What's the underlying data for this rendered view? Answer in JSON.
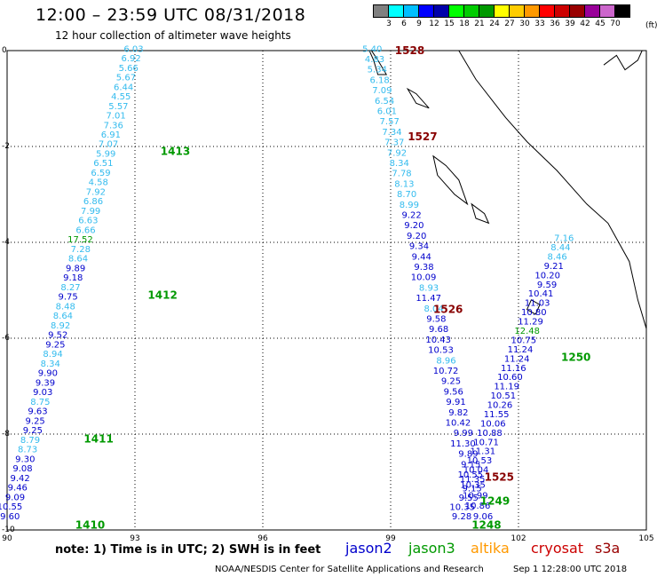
{
  "header": {
    "title": "12:00  –  23:59 UTC 08/31/2018",
    "subtitle": "12 hour collection of altimeter wave heights"
  },
  "legend": {
    "labels": [
      "3",
      "6",
      "9",
      "12",
      "15",
      "18",
      "21",
      "24",
      "27",
      "30",
      "33",
      "36",
      "39",
      "42",
      "45",
      "70"
    ],
    "colors": [
      "#808080",
      "#00ffff",
      "#00bfff",
      "#0000ff",
      "#0000aa",
      "#00ff00",
      "#00cc00",
      "#009900",
      "#ffff00",
      "#ffcc00",
      "#ff9900",
      "#ff0000",
      "#cc0000",
      "#990000",
      "#990099",
      "#cc66cc",
      "#000000"
    ],
    "unit": "(ft)"
  },
  "axes": {
    "x_ticks": [
      "90",
      "93",
      "96",
      "99",
      "102",
      "105"
    ],
    "y_ticks": [
      "0",
      "-2",
      "-4",
      "-6",
      "-8",
      "-10"
    ]
  },
  "colors": {
    "jason2": "#0000cc",
    "jason3": "#009900",
    "altika": "#ff9900",
    "cryosat": "#cc0000",
    "s3a": "#990000",
    "light_blue": "#33bbee",
    "pass_label": "#009900",
    "pass_label_dark": "#880000"
  },
  "tracks": [
    {
      "id": "track-left",
      "pass_labels": [
        {
          "text": "1413",
          "pos": [
            93.6,
            -2.1
          ],
          "color": "#009900"
        },
        {
          "text": "1412",
          "pos": [
            93.3,
            -5.1
          ],
          "color": "#009900"
        },
        {
          "text": "1411",
          "pos": [
            91.8,
            -8.1
          ],
          "color": "#009900"
        },
        {
          "text": "1410",
          "pos": [
            91.6,
            -9.9
          ],
          "color": "#009900"
        }
      ],
      "start": [
        93.2,
        0.05
      ],
      "end": [
        90.3,
        -9.7
      ],
      "values": [
        "6.03",
        "6.92",
        "5.66",
        "5.67",
        "6.44",
        "4.55",
        "5.57",
        "7.01",
        "7.36",
        "6.91",
        "7.07",
        "5.99",
        "6.51",
        "6.59",
        "4.58",
        "7.92",
        "6.86",
        "7.99",
        "6.63",
        "6.66",
        "17.52",
        "7.28",
        "8.64",
        "9.89",
        "9.18",
        "8.27",
        "9.75",
        "8.48",
        "8.64",
        "8.92",
        "9.52",
        "9.25",
        "8.94",
        "8.34",
        "9.90",
        "9.39",
        "9.03",
        "8.75",
        "9.63",
        "9.25",
        "9.25",
        "8.79",
        "8.73",
        "9.30",
        "9.08",
        "9.42",
        "9.46",
        "9.09",
        "10.55",
        "9.60"
      ]
    },
    {
      "id": "track-right-down",
      "pass_labels": [
        {
          "text": "1528",
          "pos": [
            99.1,
            0.0
          ],
          "color": "#880000"
        },
        {
          "text": "1527",
          "pos": [
            99.4,
            -1.8
          ],
          "color": "#880000"
        },
        {
          "text": "1526",
          "pos": [
            100.0,
            -5.4
          ],
          "color": "#880000"
        },
        {
          "text": "1525",
          "pos": [
            101.2,
            -8.9
          ],
          "color": "#880000"
        }
      ],
      "start": [
        98.8,
        0.05
      ],
      "end": [
        101.4,
        -9.7
      ],
      "values": [
        "5.40",
        "4.83",
        "5.34",
        "6.18",
        "7.09",
        "6.54",
        "6.01",
        "7.57",
        "7.34",
        "7.37",
        "7.92",
        "8.34",
        "7.78",
        "8.13",
        "8.70",
        "8.99",
        "9.22",
        "9.20",
        "9.20",
        "9.34",
        "9.44",
        "9.38",
        "10.09",
        "8.93",
        "11.47",
        "8.04",
        "9.58",
        "9.68",
        "10.43",
        "10.53",
        "8.96",
        "10.72",
        "9.25",
        "9.56",
        "9.91",
        "9.82",
        "10.42",
        "9.99",
        "11.30",
        "9.89",
        "9.15",
        "10.55",
        "10.35",
        "10.99",
        "10.86",
        "9.06"
      ]
    },
    {
      "id": "track-right-up",
      "pass_labels": [
        {
          "text": "1250",
          "pos": [
            103.0,
            -6.4
          ],
          "color": "#009900"
        },
        {
          "text": "1249",
          "pos": [
            101.1,
            -9.4
          ],
          "color": "#009900"
        },
        {
          "text": "1248",
          "pos": [
            100.9,
            -9.9
          ],
          "color": "#009900"
        }
      ],
      "start": [
        103.3,
        -3.9
      ],
      "end": [
        100.9,
        -9.7
      ],
      "values": [
        "7.16",
        "8.44",
        "8.46",
        "9.21",
        "10.20",
        "9.59",
        "10.41",
        "11.03",
        "10.80",
        "11.29",
        "12.48",
        "10.75",
        "11.24",
        "11.24",
        "11.16",
        "10.60",
        "11.19",
        "10.51",
        "10.26",
        "11.55",
        "10.06",
        "10.88",
        "10.71",
        "11.31",
        "10.53",
        "10.04",
        "11.35",
        "9.15",
        "9.55",
        "10.35",
        "9.28"
      ]
    }
  ],
  "footer": {
    "note": "note:  1) Time is in UTC;  2) SWH is in feet",
    "satellites": [
      {
        "name": "jason2",
        "color": "#0000cc"
      },
      {
        "name": "jason3",
        "color": "#009900"
      },
      {
        "name": "altika",
        "color": "#ff9900"
      },
      {
        "name": "cryosat",
        "color": "#cc0000"
      },
      {
        "name": "s3a",
        "color": "#990000"
      }
    ],
    "credit": "NOAA/NESDIS Center for Satellite Applications and Research",
    "timestamp": "Sep  1 12:28:00 UTC 2018"
  }
}
